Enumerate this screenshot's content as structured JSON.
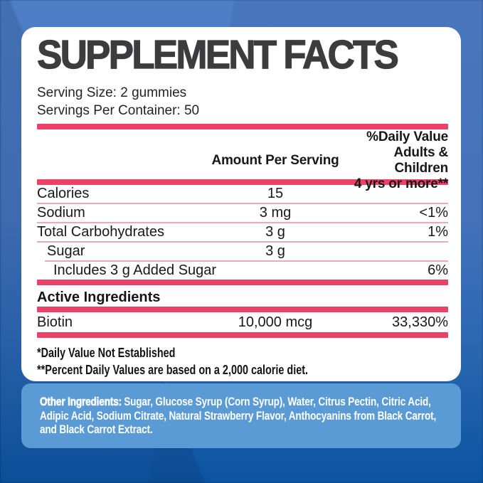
{
  "colors": {
    "background_top_blue": "#4e7ec6",
    "background_bottom_blue": "#0b58a7",
    "panel_white": "#ffffff",
    "title_text": "#3c3c3e",
    "body_text": "#18181a",
    "rule_pink": "#ee4168",
    "separator_pink": "#eaa9bd",
    "other_box_blue": "#5b9bd5",
    "other_box_text": "#ffffff"
  },
  "label": {
    "title": "SUPPLEMENT FACTS",
    "serving_size": "Serving Size: 2 gummies",
    "servings_per_container": "Servings Per Container: 50",
    "columns": {
      "amount_header": "Amount Per Serving",
      "dv_lines": [
        "%Daily Value",
        "Adults & Children",
        "4 yrs or more**"
      ]
    },
    "rows": [
      {
        "name": "Calories",
        "amount": "15",
        "dv": ""
      },
      {
        "name": "Sodium",
        "amount": "3 mg",
        "dv": "<1%"
      },
      {
        "name": "Total Carbohydrates",
        "amount": "3 g",
        "dv": "1%"
      },
      {
        "name": "Sugar",
        "amount": "3 g",
        "dv": ""
      },
      {
        "name": "Includes 3 g Added Sugar",
        "amount": "",
        "dv": "6%"
      }
    ],
    "active_section": {
      "heading": "Active Ingredients",
      "rows": [
        {
          "name": "Biotin",
          "amount": "10,000 mcg",
          "dv": "33,330%"
        }
      ]
    },
    "footnotes": [
      "*Daily Value Not Established",
      "**Percent Daily Values are based on a 2,000 calorie diet."
    ],
    "other_ingredients": {
      "heading": "Other Ingredients:",
      "text": "Sugar, Glucose Syrup (Corn Syrup), Water, Citrus Pectin, Citric Acid, Adipic Acid, Sodium Citrate, Natural Strawberry Flavor, Anthocyanins from Black Carrot, and Black Carrot Extract."
    }
  }
}
